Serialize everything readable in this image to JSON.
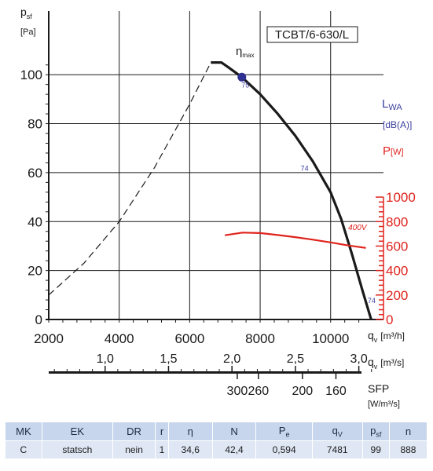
{
  "model_label": "TCBT/6-630/L",
  "y_label": {
    "main": "p",
    "sub": "sf",
    "unit": "[Pa]"
  },
  "eta_label": {
    "main": "η",
    "sub": "max"
  },
  "lwa_label": {
    "main": "L",
    "sub": "WA",
    "unit": "[dB(A)]"
  },
  "pw_label": {
    "main": "P",
    "unit": "[W]"
  },
  "qv_m3h_label": {
    "main": "q",
    "sub": "v",
    "unit": "[m³/h]"
  },
  "qv_m3s_label": {
    "main": "q",
    "sub": "v",
    "unit": "[m³/s]"
  },
  "sfp_label": {
    "main": "SFP",
    "unit": "[W/m³/s]"
  },
  "colors": {
    "power": "#e0231c",
    "lwa": "#3a3f9e",
    "axis": "#1a1a1a",
    "grid": "#1a1a1a"
  },
  "chart_data": {
    "type": "line",
    "x_axis": {
      "label": "q_v [m³/h]",
      "ticks": [
        "2000",
        "4000",
        "6000",
        "8000",
        "10000"
      ],
      "range": [
        2000,
        11500
      ]
    },
    "y_axis_left": {
      "label": "p_sf [Pa]",
      "ticks": [
        "0",
        "20",
        "40",
        "60",
        "80",
        "100"
      ],
      "range": [
        0,
        110
      ]
    },
    "y_axis_right": {
      "label": "P[W]",
      "ticks": [
        "0",
        "200",
        "400",
        "600",
        "800",
        "1000"
      ],
      "range": [
        0,
        2200
      ]
    },
    "secondary_axis_m3s": {
      "ticks": [
        "1,0",
        "1,5",
        "2,0",
        "2,5",
        "3,0"
      ],
      "values": [
        1.0,
        1.5,
        2.0,
        2.5,
        3.0
      ]
    },
    "sfp_axis": {
      "ticks": [
        "300",
        "260",
        "200",
        "160"
      ],
      "q_m3h": [
        7350,
        7950,
        9200,
        10150
      ]
    },
    "series": [
      {
        "style": "dashed",
        "points": [
          [
            2000,
            10
          ],
          [
            3000,
            23
          ],
          [
            4000,
            40
          ],
          [
            5000,
            62
          ],
          [
            6000,
            88
          ],
          [
            6600,
            105
          ]
        ]
      },
      {
        "style": "solid",
        "points": [
          [
            6600,
            105
          ],
          [
            6900,
            105
          ],
          [
            7100,
            103
          ],
          [
            7481,
            99
          ],
          [
            8000,
            92
          ],
          [
            8500,
            84
          ],
          [
            9000,
            75
          ],
          [
            9500,
            64.5
          ],
          [
            10000,
            52
          ],
          [
            10300,
            41
          ],
          [
            10600,
            27
          ],
          [
            10900,
            12
          ],
          [
            11150,
            0
          ]
        ]
      },
      {
        "name": "400V",
        "axis": "right",
        "points": [
          [
            7000,
            688
          ],
          [
            7500,
            710
          ],
          [
            8000,
            706
          ],
          [
            8500,
            690
          ],
          [
            9000,
            673
          ],
          [
            9500,
            652
          ],
          [
            10000,
            630
          ],
          [
            10500,
            605
          ],
          [
            11000,
            585
          ]
        ]
      }
    ],
    "operating_point": {
      "x": 7481,
      "y": 99
    },
    "annotations": [
      {
        "text": "75",
        "x": 7470,
        "y": 96
      },
      {
        "text": "74",
        "x": 9150,
        "y": 62
      },
      {
        "text": "74",
        "x": 11050,
        "y": 8
      },
      {
        "text": "400V",
        "x": 10500,
        "y": 35
      }
    ]
  },
  "table": {
    "headers": [
      {
        "main": "MK",
        "sub": ""
      },
      {
        "main": "EK",
        "sub": ""
      },
      {
        "main": "DR",
        "sub": ""
      },
      {
        "main": "r",
        "sub": ""
      },
      {
        "main": "η",
        "sub": ""
      },
      {
        "main": "N",
        "sub": ""
      },
      {
        "main": "P",
        "sub": "e"
      },
      {
        "main": "q",
        "sub": "V"
      },
      {
        "main": "p",
        "sub": "sf"
      },
      {
        "main": "n",
        "sub": ""
      }
    ],
    "row": [
      "C",
      "statsch",
      "nein",
      "1",
      "34,6",
      "42,4",
      "0,594",
      "7481",
      "99",
      "888"
    ]
  }
}
